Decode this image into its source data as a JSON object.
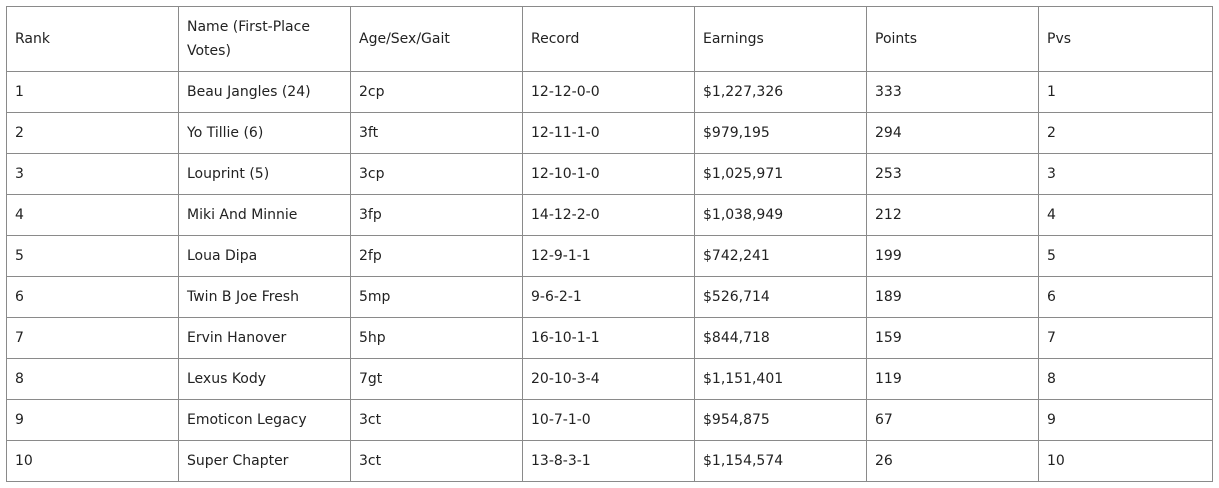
{
  "table": {
    "headers": [
      "Rank",
      "Name (First-Place Votes)",
      "Age/Sex/Gait",
      "Record",
      "Earnings",
      "Points",
      "Pvs"
    ],
    "rows": [
      [
        "1",
        "Beau Jangles (24)",
        "2cp",
        "12-12-0-0",
        "$1,227,326",
        "333",
        "1"
      ],
      [
        "2",
        "Yo Tillie (6)",
        "3ft",
        "12-11-1-0",
        "$979,195",
        "294",
        "2"
      ],
      [
        "3",
        "Louprint (5)",
        "3cp",
        "12-10-1-0",
        "$1,025,971",
        "253",
        "3"
      ],
      [
        "4",
        "Miki And Minnie",
        "3fp",
        "14-12-2-0",
        "$1,038,949",
        "212",
        "4"
      ],
      [
        "5",
        "Loua Dipa",
        "2fp",
        "12-9-1-1",
        "$742,241",
        "199",
        "5"
      ],
      [
        "6",
        "Twin B Joe Fresh",
        "5mp",
        "9-6-2-1",
        "$526,714",
        "189",
        "6"
      ],
      [
        "7",
        "Ervin Hanover",
        "5hp",
        "16-10-1-1",
        "$844,718",
        "159",
        "7"
      ],
      [
        "8",
        "Lexus Kody",
        "7gt",
        "20-10-3-4",
        "$1,151,401",
        "119",
        "8"
      ],
      [
        "9",
        "Emoticon Legacy",
        "3ct",
        "10-7-1-0",
        "$954,875",
        "67",
        "9"
      ],
      [
        "10",
        "Super Chapter",
        "3ct",
        "13-8-3-1",
        "$1,154,574",
        "26",
        "10"
      ]
    ]
  }
}
